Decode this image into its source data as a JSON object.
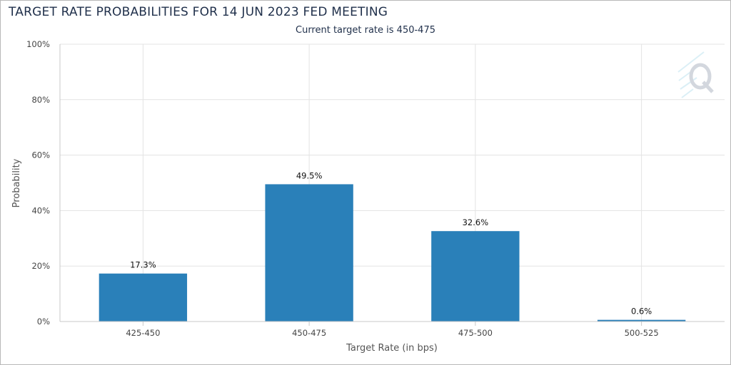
{
  "title": "TARGET RATE PROBABILITIES FOR 14 JUN 2023 FED MEETING",
  "subtitle": "Current target rate is 450-475",
  "colors": {
    "bar": "#2a80b9",
    "grid": "#e3e3e3",
    "axis": "#c8c8c8",
    "title": "#1f2f4a"
  },
  "watermark_icon": "q-logo-icon",
  "chart_data": {
    "type": "bar",
    "title": "TARGET RATE PROBABILITIES FOR 14 JUN 2023 FED MEETING",
    "subtitle": "Current target rate is 450-475",
    "xlabel": "Target Rate (in bps)",
    "ylabel": "Probability",
    "categories": [
      "425-450",
      "450-475",
      "475-500",
      "500-525"
    ],
    "values": [
      17.3,
      49.5,
      32.6,
      0.6
    ],
    "data_labels": [
      "17.3%",
      "49.5%",
      "32.6%",
      "0.6%"
    ],
    "ylim": [
      0,
      100
    ],
    "yticks": [
      0,
      20,
      40,
      60,
      80,
      100
    ],
    "ytick_labels": [
      "0%",
      "20%",
      "40%",
      "60%",
      "80%",
      "100%"
    ],
    "grid": true,
    "legend": "none"
  }
}
